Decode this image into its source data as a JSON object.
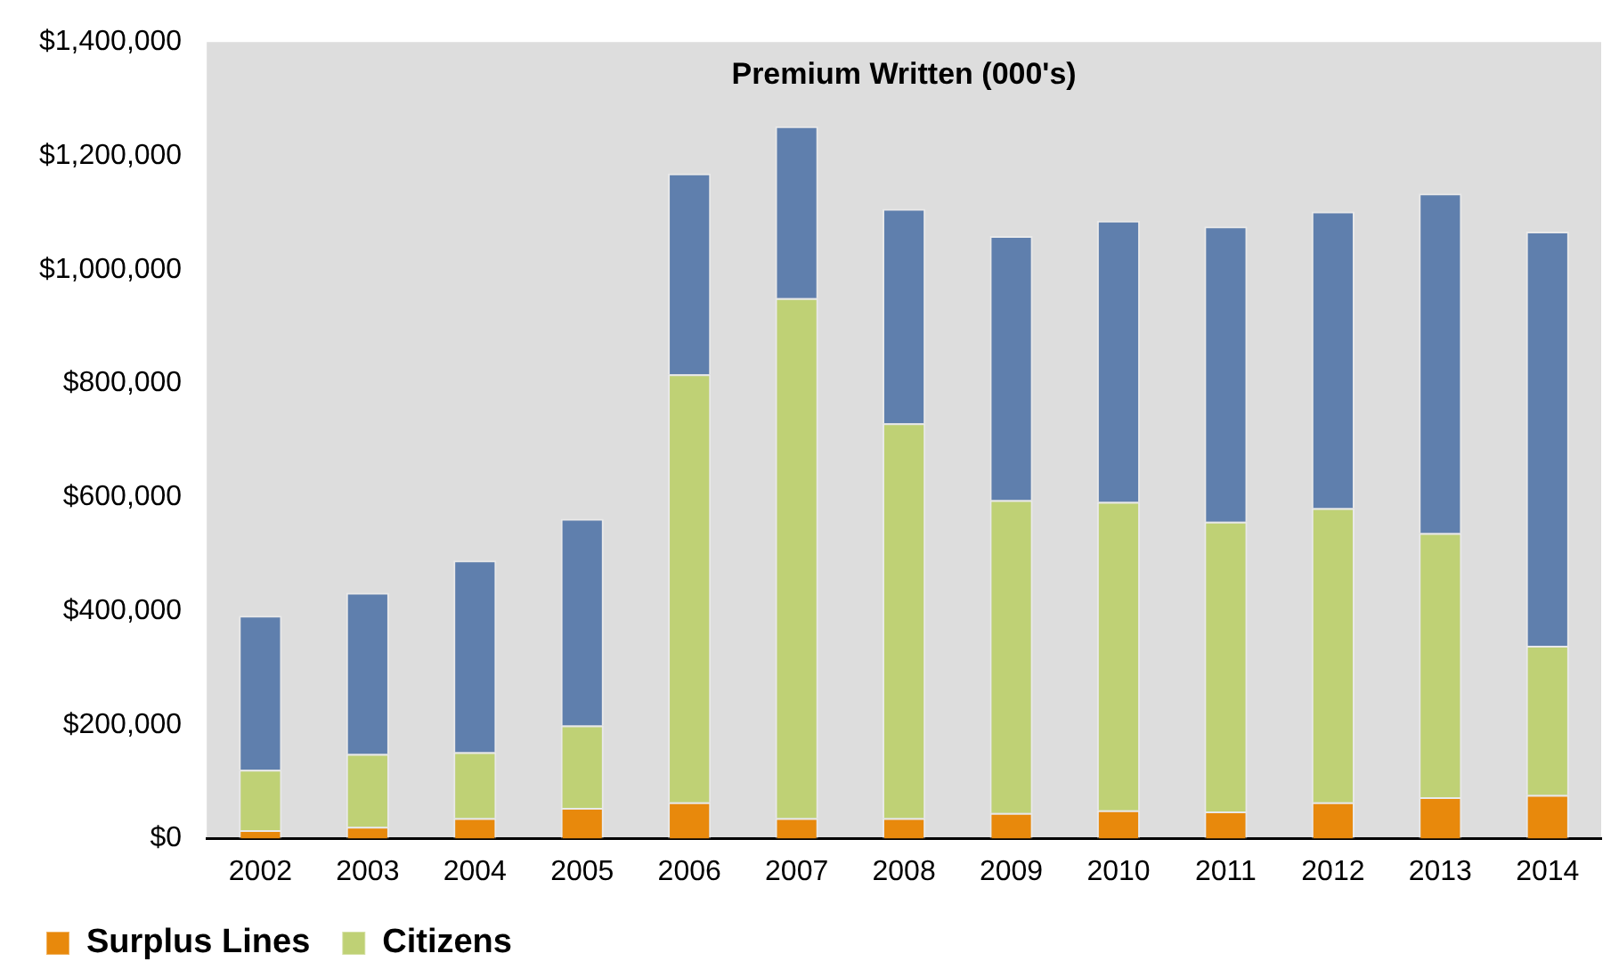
{
  "chart_data": {
    "type": "bar",
    "title": "Premium Written (000's)",
    "stacked": true,
    "categories": [
      "2002",
      "2003",
      "2004",
      "2005",
      "2006",
      "2007",
      "2008",
      "2009",
      "2010",
      "2011",
      "2012",
      "2013",
      "2014"
    ],
    "series": [
      {
        "name": "Surplus Lines",
        "color": "#e8890c",
        "values": [
          15000,
          21000,
          36000,
          54000,
          64000,
          36000,
          36000,
          45000,
          50000,
          48000,
          64000,
          73000,
          77000
        ]
      },
      {
        "name": "Citizens",
        "color": "#bfd175",
        "values": [
          106000,
          128000,
          116000,
          145000,
          752000,
          914000,
          694000,
          550000,
          542000,
          509000,
          517000,
          464000,
          262000
        ]
      },
      {
        "color": "#5f7fad",
        "values": [
          271000,
          283000,
          337000,
          363000,
          353000,
          302000,
          377000,
          464000,
          494000,
          519000,
          521000,
          597000,
          728000
        ]
      }
    ],
    "ylim": [
      0,
      1400000
    ],
    "yticks": [
      {
        "value": 0,
        "label": "$0"
      },
      {
        "value": 200000,
        "label": "$200,000"
      },
      {
        "value": 400000,
        "label": "$400,000"
      },
      {
        "value": 600000,
        "label": "$600,000"
      },
      {
        "value": 800000,
        "label": "$800,000"
      },
      {
        "value": 1000000,
        "label": "$1,000,000"
      },
      {
        "value": 1200000,
        "label": "$1,200,000"
      },
      {
        "value": 1400000,
        "label": "$1,400,000"
      }
    ],
    "grid": false,
    "legend": "bottom"
  }
}
